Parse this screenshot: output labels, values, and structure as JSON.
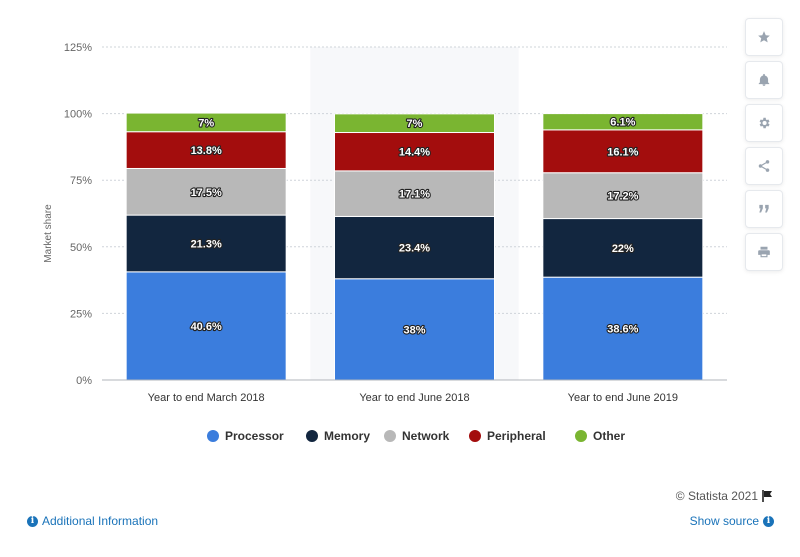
{
  "chart_data": {
    "type": "bar",
    "stacked": true,
    "categories": [
      "Year to end March 2018",
      "Year to end June 2018",
      "Year to end June 2019"
    ],
    "series": [
      {
        "name": "Processor",
        "color": "#3b7ddd",
        "values": [
          40.6,
          38,
          38.6
        ],
        "labels": [
          "40.6%",
          "38%",
          "38.6%"
        ]
      },
      {
        "name": "Memory",
        "color": "#12263f",
        "values": [
          21.3,
          23.4,
          22
        ],
        "labels": [
          "21.3%",
          "23.4%",
          "22%"
        ]
      },
      {
        "name": "Network",
        "color": "#b8b8b8",
        "values": [
          17.5,
          17.1,
          17.2
        ],
        "labels": [
          "17.5%",
          "17.1%",
          "17.2%"
        ]
      },
      {
        "name": "Peripheral",
        "color": "#a30d0d",
        "values": [
          13.8,
          14.4,
          16.1
        ],
        "labels": [
          "13.8%",
          "14.4%",
          "16.1%"
        ]
      },
      {
        "name": "Other",
        "color": "#7ab531",
        "values": [
          7,
          7,
          6.1
        ],
        "labels": [
          "7%",
          "7%",
          "6.1%"
        ]
      }
    ],
    "ylabel": "Market share",
    "ylim": [
      0,
      125
    ],
    "yticks": [
      0,
      25,
      50,
      75,
      100,
      125
    ],
    "ytick_labels": [
      "0%",
      "25%",
      "50%",
      "75%",
      "100%",
      "125%"
    ],
    "grid": true,
    "legend_position": "bottom"
  },
  "side_tools": [
    "star-icon",
    "bell-icon",
    "gear-icon",
    "share-icon",
    "quote-icon",
    "print-icon"
  ],
  "footer": {
    "copyright": "© Statista 2021",
    "additional_info": "Additional Information",
    "show_source": "Show source"
  }
}
